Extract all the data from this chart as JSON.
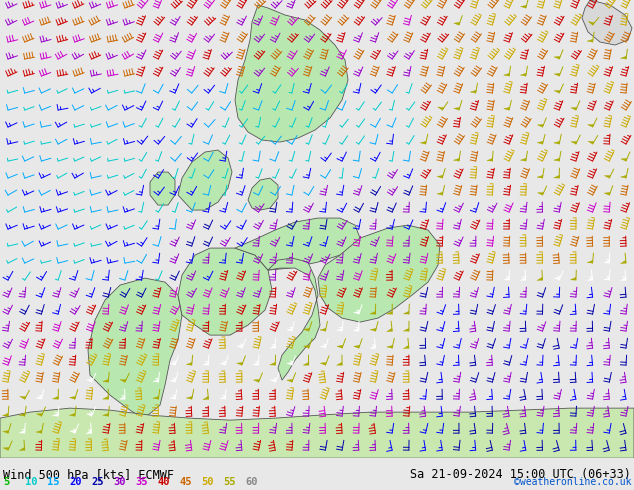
{
  "title_left": "Wind 500 hPa [kts] ECMWF",
  "title_right": "Sa 21-09-2024 15:00 UTC (06+33)",
  "credit": "©weatheronline.co.uk",
  "legend_values": [
    5,
    10,
    15,
    20,
    25,
    30,
    35,
    40,
    45,
    50,
    55,
    60
  ],
  "legend_colors": [
    "#00bb00",
    "#00cccc",
    "#00aaff",
    "#0000ff",
    "#0000aa",
    "#9900cc",
    "#cc00cc",
    "#cc0000",
    "#cc6600",
    "#ccaa00",
    "#aaaa00",
    "#ffffff"
  ],
  "ocean_color": "#e8e8e8",
  "land_color": "#b8e8b0",
  "coast_color": "#555555",
  "bottom_bg": "#ffffff",
  "figsize": [
    6.34,
    4.9
  ],
  "dpi": 100,
  "speed_bins": [
    5,
    10,
    15,
    20,
    25,
    30,
    35,
    40,
    45,
    50,
    55,
    60
  ],
  "barb_colors": [
    "#00bb00",
    "#00cccc",
    "#00aaff",
    "#0000ff",
    "#0000aa",
    "#9900cc",
    "#cc00cc",
    "#cc0000",
    "#cc6600",
    "#ccaa00",
    "#aaaa00",
    "#ffffff"
  ]
}
